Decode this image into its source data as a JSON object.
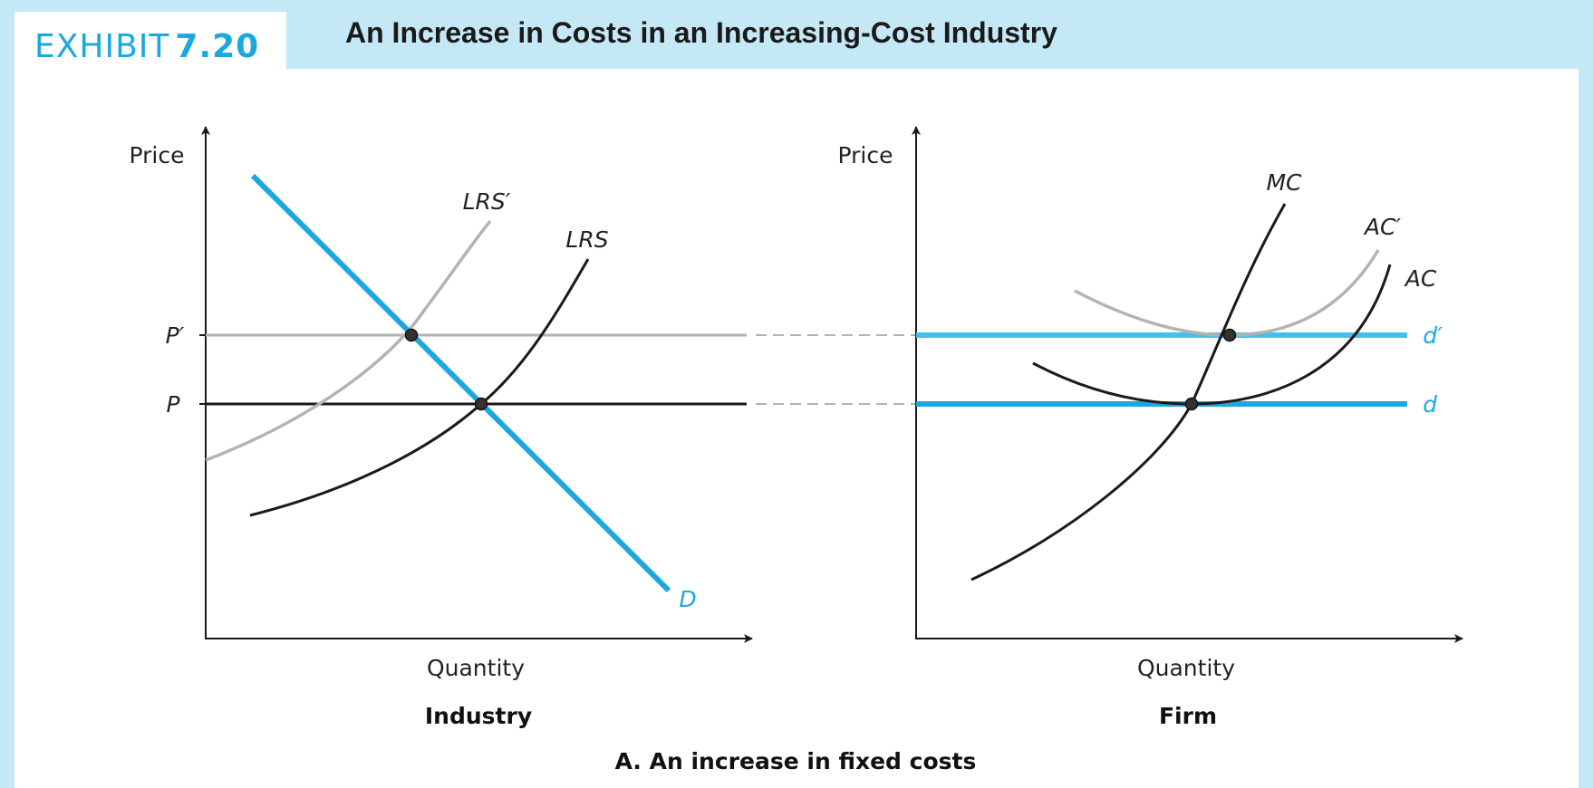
{
  "header": {
    "exhibit_word": "EXHIBIT",
    "exhibit_number": "7.20",
    "title": "An Increase in Costs in an Increasing-Cost Industry"
  },
  "colors": {
    "background": "#c5e8f7",
    "accent_blue": "#1ba8e0",
    "light_blue": "#3fc1ee",
    "gray": "#b3b3b3",
    "black": "#1a1a1a"
  },
  "industry": {
    "title": "Industry",
    "y_axis_label": "Price",
    "x_axis_label": "Quantity",
    "price_labels": {
      "p_prime": "P′",
      "p": "P"
    },
    "curves": {
      "lrs_prime": "LRS′",
      "lrs": "LRS",
      "demand": "D"
    }
  },
  "firm": {
    "title": "Firm",
    "y_axis_label": "Price",
    "x_axis_label": "Quantity",
    "curves": {
      "mc": "MC",
      "ac_prime": "AC′",
      "ac": "AC",
      "d_prime": "d′",
      "d": "d"
    }
  },
  "caption": "A. An increase in fixed costs"
}
